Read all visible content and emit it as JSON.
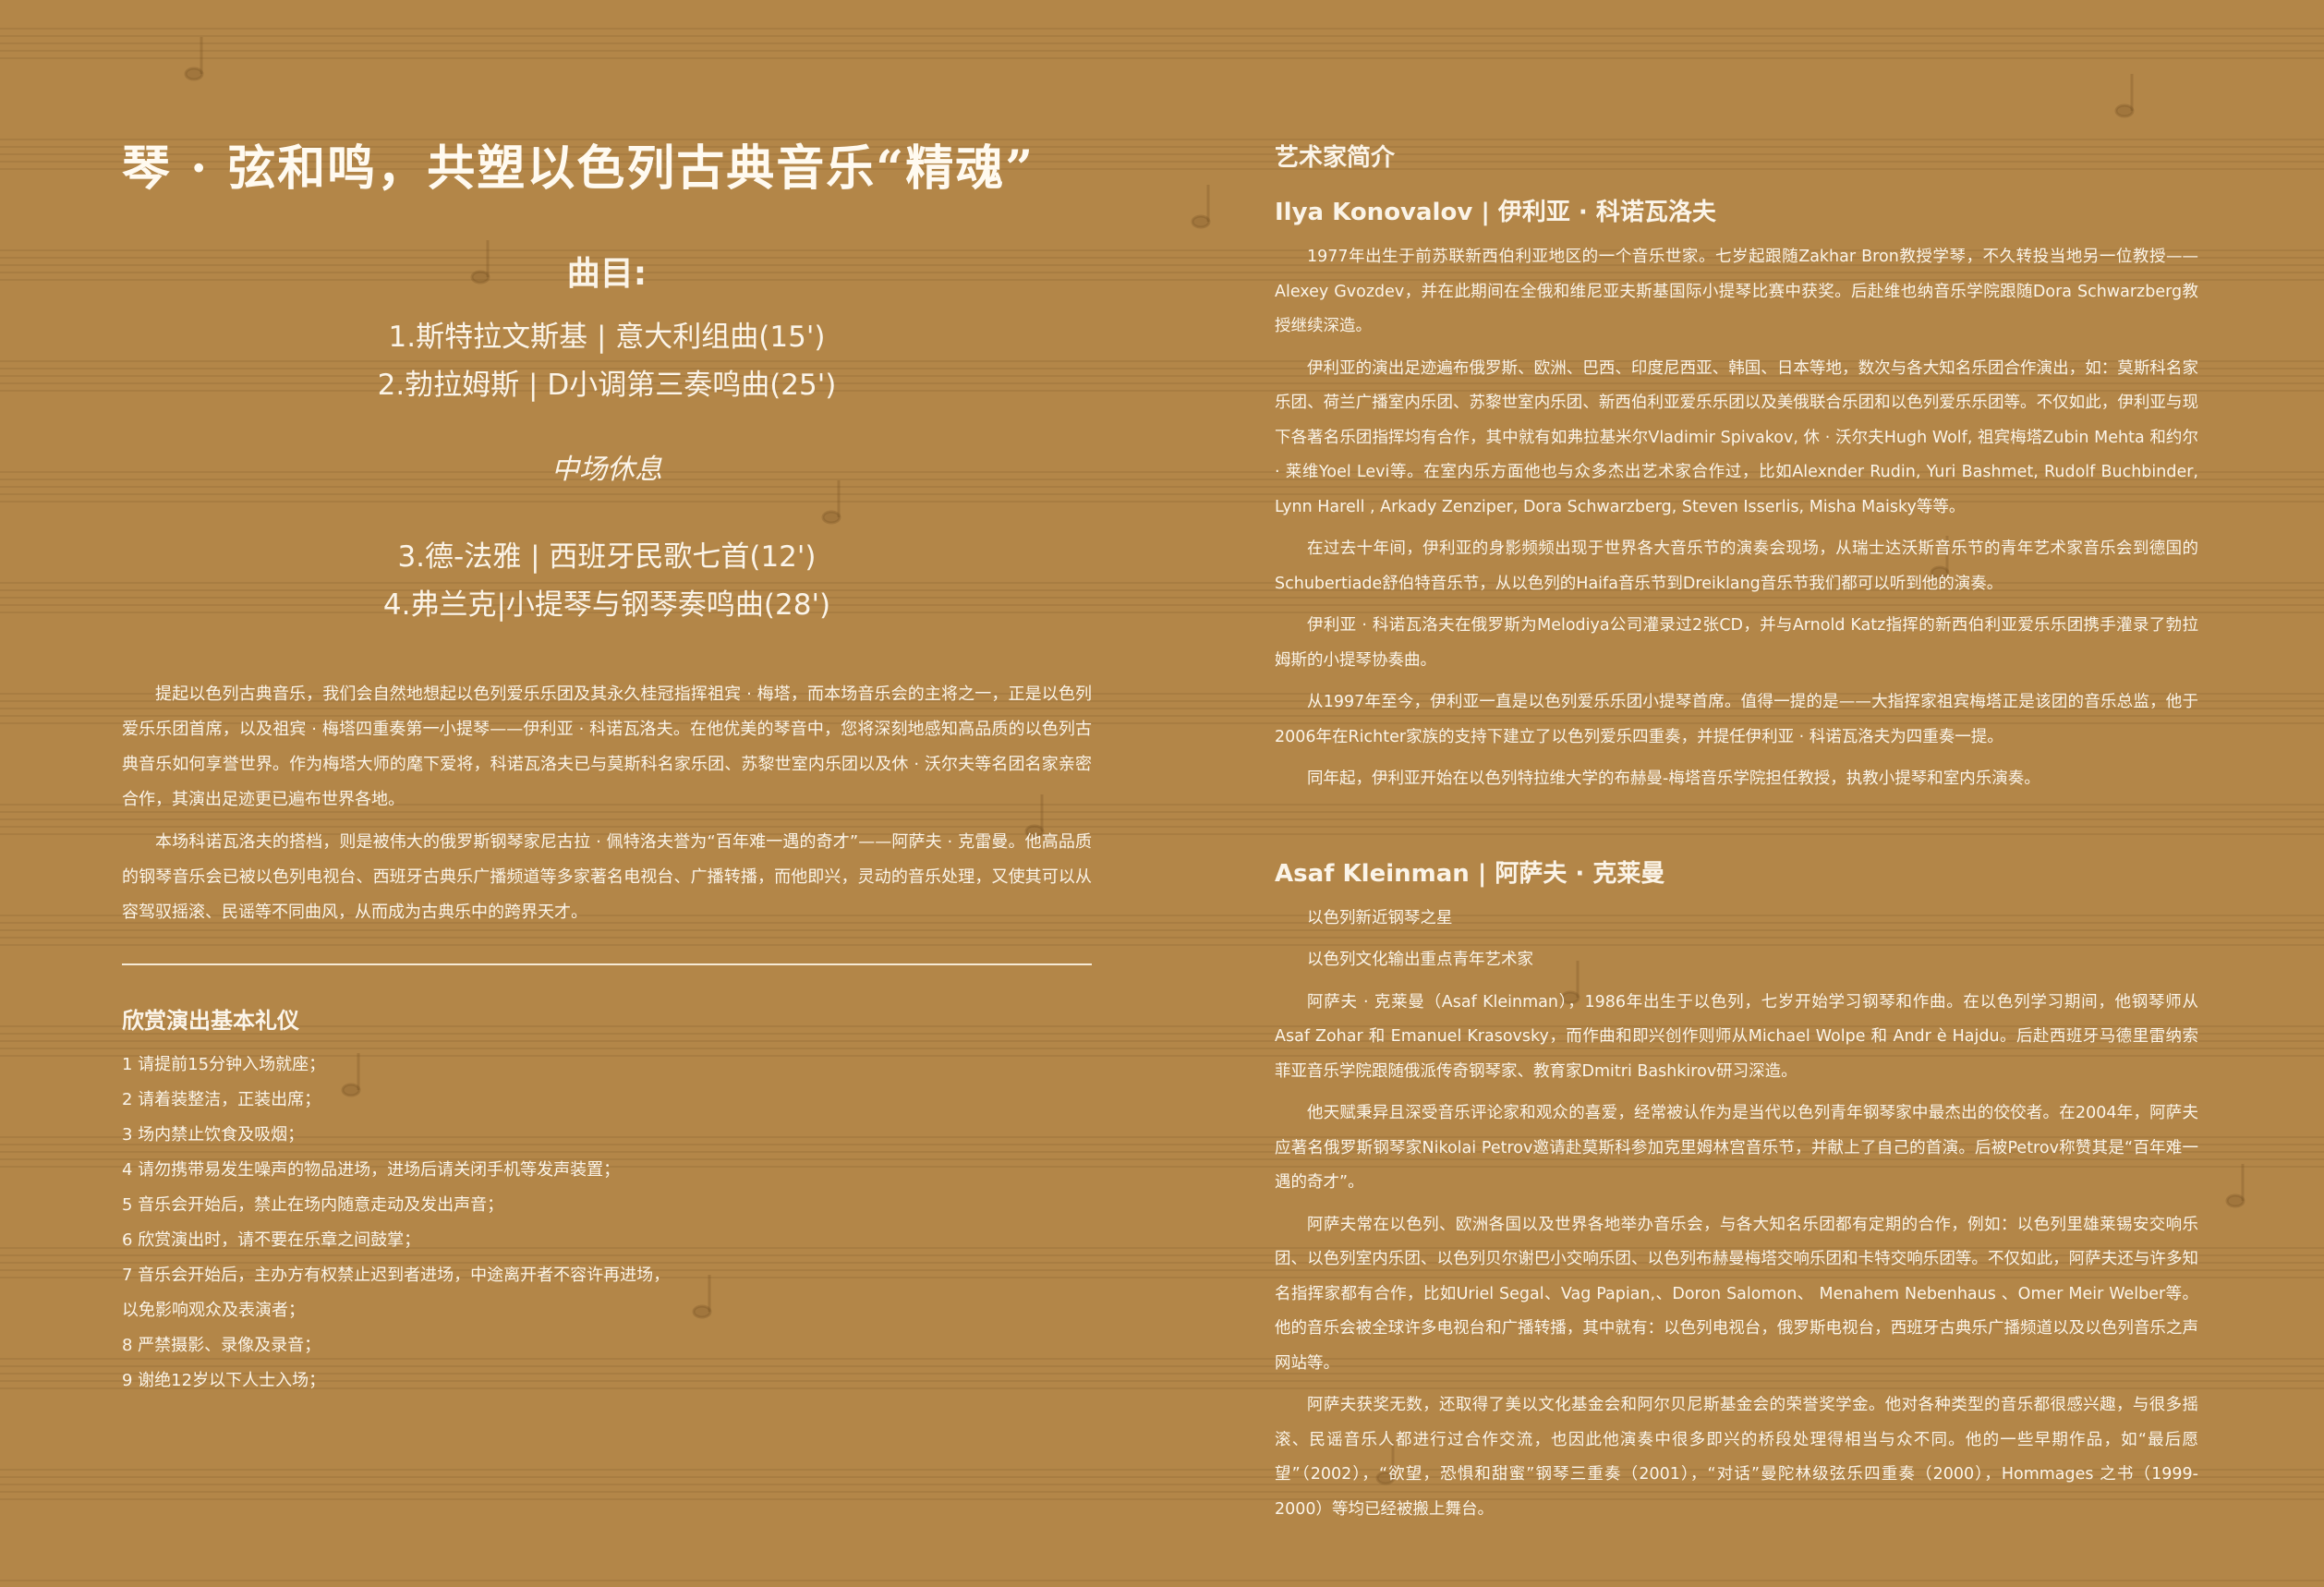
{
  "left": {
    "title": "琴 · 弦和鸣，共塑以色列古典音乐“精魂”",
    "program": {
      "heading": "曲目:",
      "items_a": [
        "1.斯特拉文斯基 | 意大利组曲(15')",
        "2.勃拉姆斯 | D小调第三奏鸣曲(25')"
      ],
      "intermission": "中场休息",
      "items_b": [
        "3.德-法雅 | 西班牙民歌七首(12')",
        "4.弗兰克|小提琴与钢琴奏鸣曲(28')"
      ]
    },
    "intro_paragraphs": [
      "提起以色列古典音乐，我们会自然地想起以色列爱乐乐团及其永久桂冠指挥祖宾 · 梅塔，而本场音乐会的主将之一，正是以色列爱乐乐团首席，以及祖宾 · 梅塔四重奏第一小提琴——伊利亚 · 科诺瓦洛夫。在他优美的琴音中，您将深刻地感知高品质的以色列古典音乐如何享誉世界。作为梅塔大师的麾下爱将，科诺瓦洛夫已与莫斯科名家乐团、苏黎世室内乐团以及休 · 沃尔夫等名团名家亲密合作，其演出足迹更已遍布世界各地。",
      "本场科诺瓦洛夫的搭档，则是被伟大的俄罗斯钢琴家尼古拉 · 佩特洛夫誉为“百年难一遇的奇才”——阿萨夫 · 克雷曼。他高品质的钢琴音乐会已被以色列电视台、西班牙古典乐广播频道等多家著名电视台、广播转播，而他即兴，灵动的音乐处理，又使其可以从容驾驭摇滚、民谣等不同曲风，从而成为古典乐中的跨界天才。"
    ],
    "etiquette": {
      "title": "欣赏演出基本礼仪",
      "items": [
        "1 请提前15分钟入场就座；",
        "2 请着装整洁，正装出席；",
        "3 场内禁止饮食及吸烟；",
        "4 请勿携带易发生噪声的物品进场，进场后请关闭手机等发声装置；",
        "5 音乐会开始后，禁止在场内随意走动及发出声音；",
        "6 欣赏演出时，请不要在乐章之间鼓掌；",
        "7 音乐会开始后，主办方有权禁止迟到者进场，中途离开者不容许再进场，",
        "以免影响观众及表演者；",
        "8 严禁摄影、录像及录音；",
        "9 谢绝12岁以下人士入场；"
      ]
    }
  },
  "right": {
    "section_title": "艺术家简介",
    "artists": [
      {
        "name": "Ilya Konovalov | 伊利亚 · 科诺瓦洛夫",
        "paragraphs": [
          "1977年出生于前苏联新西伯利亚地区的一个音乐世家。七岁起跟随Zakhar Bron教授学琴，不久转投当地另一位教授——Alexey Gvozdev，并在此期间在全俄和维尼亚夫斯基国际小提琴比赛中获奖。后赴维也纳音乐学院跟随Dora Schwarzberg教授继续深造。",
          "伊利亚的演出足迹遍布俄罗斯、欧洲、巴西、印度尼西亚、韩国、日本等地，数次与各大知名乐团合作演出，如：莫斯科名家乐团、荷兰广播室内乐团、苏黎世室内乐团、新西伯利亚爱乐乐团以及美俄联合乐团和以色列爱乐乐团等。不仅如此，伊利亚与现下各著名乐团指挥均有合作，其中就有如弗拉基米尔Vladimir Spivakov, 休 · 沃尔夫Hugh Wolf, 祖宾梅塔Zubin Mehta 和约尔 · 莱维Yoel Levi等。在室内乐方面他也与众多杰出艺术家合作过，比如Alexnder Rudin, Yuri Bashmet, Rudolf Buchbinder, Lynn Harell , Arkady Zenziper, Dora Schwarzberg, Steven Isserlis, Misha Maisky等等。",
          "在过去十年间，伊利亚的身影频频出现于世界各大音乐节的演奏会现场，从瑞士达沃斯音乐节的青年艺术家音乐会到德国的Schubertiade舒伯特音乐节，从以色列的Haifa音乐节到Dreiklang音乐节我们都可以听到他的演奏。",
          "伊利亚 · 科诺瓦洛夫在俄罗斯为Melodiya公司灌录过2张CD，并与Arnold Katz指挥的新西伯利亚爱乐乐团携手灌录了勃拉姆斯的小提琴协奏曲。",
          "从1997年至今，伊利亚一直是以色列爱乐乐团小提琴首席。值得一提的是——大指挥家祖宾梅塔正是该团的音乐总监，他于2006年在Richter家族的支持下建立了以色列爱乐四重奏，并提任伊利亚 · 科诺瓦洛夫为四重奏一提。",
          "同年起，伊利亚开始在以色列特拉维大学的布赫曼-梅塔音乐学院担任教授，执教小提琴和室内乐演奏。"
        ]
      },
      {
        "name": "Asaf Kleinman | 阿萨夫 · 克莱曼",
        "paragraphs": [
          "以色列新近钢琴之星",
          "以色列文化输出重点青年艺术家",
          "阿萨夫 · 克莱曼（Asaf Kleinman），1986年出生于以色列，七岁开始学习钢琴和作曲。在以色列学习期间，他钢琴师从Asaf Zohar 和 Emanuel Krasovsky，而作曲和即兴创作则师从Michael Wolpe 和 Andr è Hajdu。后赴西班牙马德里雷纳索菲亚音乐学院跟随俄派传奇钢琴家、教育家Dmitri Bashkirov研习深造。",
          "他天赋秉异且深受音乐评论家和观众的喜爱，经常被认作为是当代以色列青年钢琴家中最杰出的佼佼者。在2004年，阿萨夫应著名俄罗斯钢琴家Nikolai Petrov邀请赴莫斯科参加克里姆林宫音乐节，并献上了自己的首演。后被Petrov称赞其是“百年难一遇的奇才”。",
          "阿萨夫常在以色列、欧洲各国以及世界各地举办音乐会，与各大知名乐团都有定期的合作，例如：以色列里雄莱锡安交响乐团、以色列室内乐团、以色列贝尔谢巴小交响乐团、以色列布赫曼梅塔交响乐团和卡特交响乐团等。不仅如此，阿萨夫还与许多知名指挥家都有合作，比如Uriel Segal、Vag Papian,、Doron Salomon、 Menahem Nebenhaus 、Omer Meir Welber等。他的音乐会被全球许多电视台和广播转播，其中就有：以色列电视台，俄罗斯电视台，西班牙古典乐广播频道以及以色列音乐之声网站等。",
          "阿萨夫获奖无数，还取得了美以文化基金会和阿尔贝尼斯基金会的荣誉奖学金。他对各种类型的音乐都很感兴趣，与很多摇滚、民谣音乐人都进行过合作交流，也因此他演奏中很多即兴的桥段处理得相当与众不同。他的一些早期作品，如“最后愿望”（2002），“欲望，恐惧和甜蜜”钢琴三重奏（2001），“对话”曼陀林级弦乐四重奏（2000），Hommages 之书（1999-2000）等均已经被搬上舞台。"
        ]
      }
    ]
  },
  "colors": {
    "background": "#b38648",
    "text": "#fbf4e8"
  }
}
